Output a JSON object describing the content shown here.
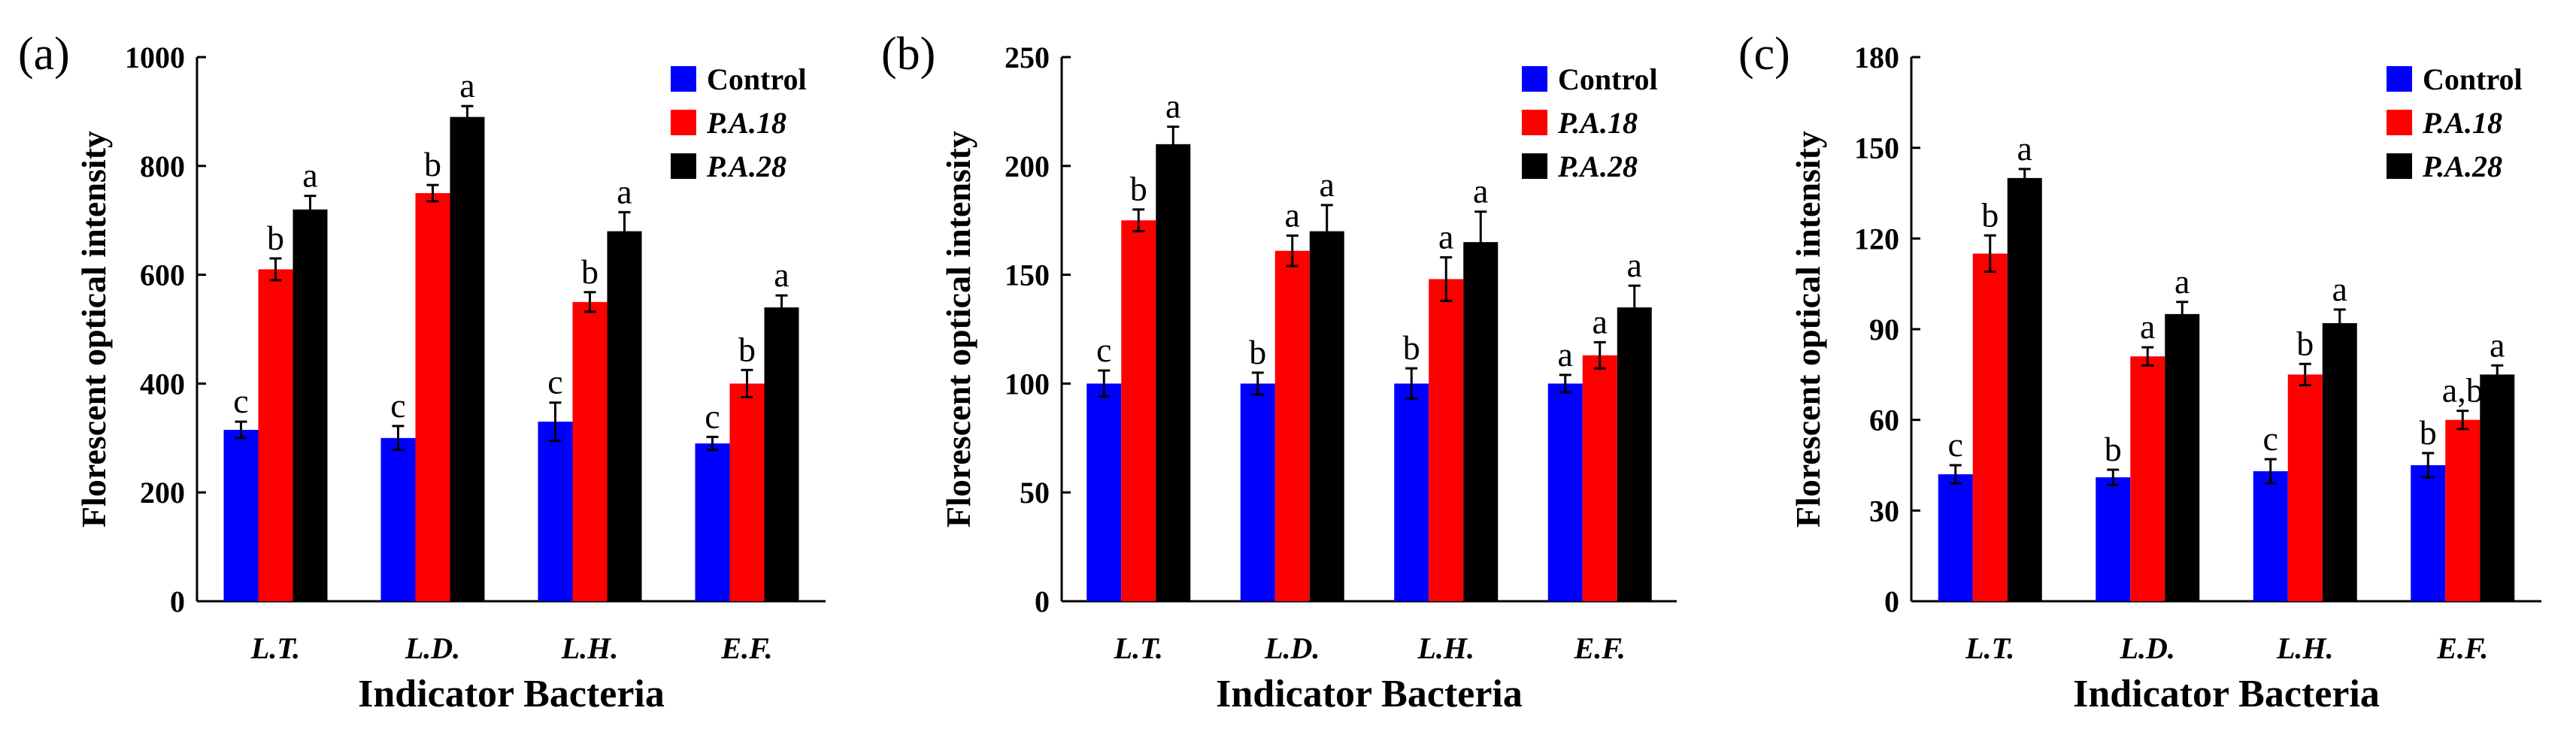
{
  "figure": {
    "legend_labels": [
      "Control",
      "P.A.18",
      "P.A.28"
    ],
    "series_colors": [
      "#0000ff",
      "#ff0000",
      "#000000"
    ],
    "series_italic": [
      false,
      true,
      true
    ]
  },
  "chart_data": [
    {
      "type": "bar",
      "panel_label": "(a)",
      "categories": [
        "L.T.",
        "L.D.",
        "L.H.",
        "E.F."
      ],
      "xlabel": "Indicator Bacteria",
      "ylabel": "Florescent optical intensity",
      "ylim": [
        0,
        1000
      ],
      "yticks": [
        0,
        200,
        400,
        600,
        800,
        1000
      ],
      "legend_position": "top-right",
      "series": [
        {
          "name": "Control",
          "values": [
            315,
            300,
            330,
            290
          ],
          "errors": [
            15,
            22,
            35,
            12
          ],
          "letters": [
            "c",
            "c",
            "c",
            "c"
          ]
        },
        {
          "name": "P.A.18",
          "values": [
            610,
            750,
            550,
            400
          ],
          "errors": [
            20,
            15,
            18,
            25
          ],
          "letters": [
            "b",
            "b",
            "b",
            "b"
          ]
        },
        {
          "name": "P.A.28",
          "values": [
            720,
            890,
            680,
            540
          ],
          "errors": [
            25,
            20,
            35,
            22
          ],
          "letters": [
            "a",
            "a",
            "a",
            "a"
          ]
        }
      ]
    },
    {
      "type": "bar",
      "panel_label": "(b)",
      "categories": [
        "L.T.",
        "L.D.",
        "L.H.",
        "E.F."
      ],
      "xlabel": "Indicator Bacteria",
      "ylabel": "Florescent optical intensity",
      "ylim": [
        0,
        250
      ],
      "yticks": [
        0,
        50,
        100,
        150,
        200,
        250
      ],
      "legend_position": "top-right",
      "series": [
        {
          "name": "Control",
          "values": [
            100,
            100,
            100,
            100
          ],
          "errors": [
            6,
            5,
            7,
            4
          ],
          "letters": [
            "c",
            "b",
            "b",
            "a"
          ]
        },
        {
          "name": "P.A.18",
          "values": [
            175,
            161,
            148,
            113
          ],
          "errors": [
            5,
            7,
            10,
            6
          ],
          "letters": [
            "b",
            "a",
            "a",
            "a"
          ]
        },
        {
          "name": "P.A.28",
          "values": [
            210,
            170,
            165,
            135
          ],
          "errors": [
            8,
            12,
            14,
            10
          ],
          "letters": [
            "a",
            "a",
            "a",
            "a"
          ]
        }
      ]
    },
    {
      "type": "bar",
      "panel_label": "(c)",
      "categories": [
        "L.T.",
        "L.D.",
        "L.H.",
        "E.F."
      ],
      "xlabel": "Indicator Bacteria",
      "ylabel": "Florescent optical intensity",
      "ylim": [
        0,
        180
      ],
      "yticks": [
        0,
        30,
        60,
        90,
        120,
        150,
        180
      ],
      "legend_position": "top-right",
      "series": [
        {
          "name": "Control",
          "values": [
            42,
            41,
            43,
            45
          ],
          "errors": [
            3,
            2.5,
            4,
            4
          ],
          "letters": [
            "c",
            "b",
            "c",
            "b"
          ]
        },
        {
          "name": "P.A.18",
          "values": [
            115,
            81,
            75,
            60
          ],
          "errors": [
            6,
            3,
            3.5,
            3
          ],
          "letters": [
            "b",
            "a",
            "b",
            "a,b"
          ]
        },
        {
          "name": "P.A.28",
          "values": [
            140,
            95,
            92,
            75
          ],
          "errors": [
            3,
            4,
            4.5,
            3
          ],
          "letters": [
            "a",
            "a",
            "a",
            "a"
          ]
        }
      ]
    }
  ]
}
